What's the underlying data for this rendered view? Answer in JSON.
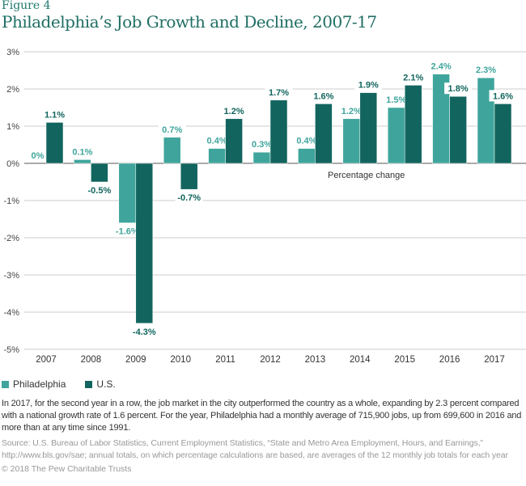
{
  "figure_label": "Figure 4",
  "title": "Philadelphia’s Job Growth and Decline, 2007-17",
  "chart_data": {
    "type": "bar",
    "title": "Philadelphia’s Job Growth and Decline, 2007-17",
    "categories": [
      "2007",
      "2008",
      "2009",
      "2010",
      "2011",
      "2012",
      "2013",
      "2014",
      "2015",
      "2016",
      "2017"
    ],
    "series": [
      {
        "name": "Philadelphia",
        "color": "#3fa59c",
        "values": [
          0,
          0.1,
          -1.6,
          0.7,
          0.4,
          0.3,
          0.4,
          1.2,
          1.5,
          2.4,
          2.3
        ],
        "labels": [
          "0%",
          "0.1%",
          "-1.6%",
          "0.7%",
          "0.4%",
          "0.3%",
          "0.4%",
          "1.2%",
          "1.5%",
          "2.4%",
          "2.3%"
        ]
      },
      {
        "name": "U.S.",
        "color": "#12655e",
        "values": [
          1.1,
          -0.5,
          -4.3,
          -0.7,
          1.2,
          1.7,
          1.6,
          1.9,
          2.1,
          1.8,
          1.6
        ],
        "labels": [
          "1.1%",
          "-0.5%",
          "-4.3%",
          "-0.7%",
          "1.2%",
          "1.7%",
          "1.6%",
          "1.9%",
          "2.1%",
          "1.8%",
          "1.6%"
        ]
      }
    ],
    "yticks": [
      "3%",
      "2%",
      "1%",
      "0%",
      "-1%",
      "-2%",
      "-3%",
      "-4%",
      "-5%"
    ],
    "ytick_values": [
      3,
      2,
      1,
      0,
      -1,
      -2,
      -3,
      -4,
      -5
    ],
    "ylim": [
      -5,
      3
    ],
    "annotation": "Percentage change",
    "grid": true,
    "legend_placement": "bottom-left"
  },
  "note": "In 2017, for the second year in a row, the job market in the city outperformed the country as a whole, expanding by 2.3 percent compared with a national growth rate of 1.6 percent. For the year, Philadelphia had a monthly average of 715,900 jobs, up from 699,600 in 2016 and more than at any time since 1991.",
  "source": "Source: U.S. Bureau of Labor Statistics, Current Employment Statistics, “State and Metro Area Employment, Hours, and Earnings,” http://www.bls.gov/sae; annual totals, on which percentage calculations are based, are averages of the 12 monthly job totals for each year",
  "copyright": "© 2018 The Pew Charitable Trusts"
}
